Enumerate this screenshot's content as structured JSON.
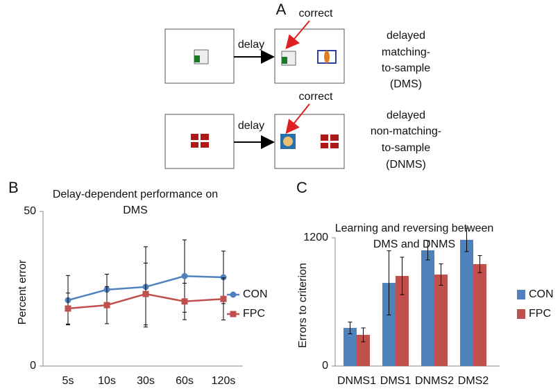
{
  "diagram": {
    "label": "A",
    "rows": [
      {
        "arrow_label": "delay",
        "pointer_label": "correct",
        "description": [
          "delayed",
          "matching-",
          "to-sample",
          "(DMS)"
        ]
      },
      {
        "arrow_label": "delay",
        "pointer_label": "correct",
        "description": [
          "delayed",
          "non-matching-",
          "to-sample",
          "(DNMS)"
        ]
      }
    ]
  },
  "chart_data": [
    {
      "type": "line",
      "panel": "B",
      "title": "Delay-dependent performance on DMS",
      "y_label": "Percent error",
      "categories": [
        "5s",
        "10s",
        "30s",
        "60s",
        "120s"
      ],
      "series": [
        {
          "name": "CON",
          "color": "#4f81bd",
          "values": [
            21.3,
            24.7,
            25.6,
            29.1,
            28.7
          ],
          "errors": [
            8,
            5,
            13,
            11.7,
            8.5
          ]
        },
        {
          "name": "FPC",
          "color": "#c0504d",
          "values": [
            18.6,
            19.7,
            23.3,
            20.9,
            21.7
          ],
          "errors": [
            5,
            6,
            10,
            5.9,
            6.8
          ]
        }
      ],
      "ylim": [
        0,
        50
      ],
      "yticks": [
        0,
        50
      ]
    },
    {
      "type": "bar",
      "panel": "C",
      "title": "Learning and reversing between DMS and DNMS",
      "y_label": "Errors to criterion",
      "categories": [
        "DNMS1",
        "DMS1",
        "DNMS2",
        "DMS2"
      ],
      "series": [
        {
          "name": "CON",
          "color": "#4f81bd",
          "values": [
            357,
            778,
            1083,
            1181
          ],
          "errors": [
            55,
            300,
            90,
            110
          ]
        },
        {
          "name": "FPC",
          "color": "#c0504d",
          "values": [
            292,
            843,
            856,
            954
          ],
          "errors": [
            65,
            175,
            100,
            80
          ]
        }
      ],
      "ylim": [
        0,
        1200
      ],
      "yticks": [
        0,
        1200
      ]
    }
  ]
}
